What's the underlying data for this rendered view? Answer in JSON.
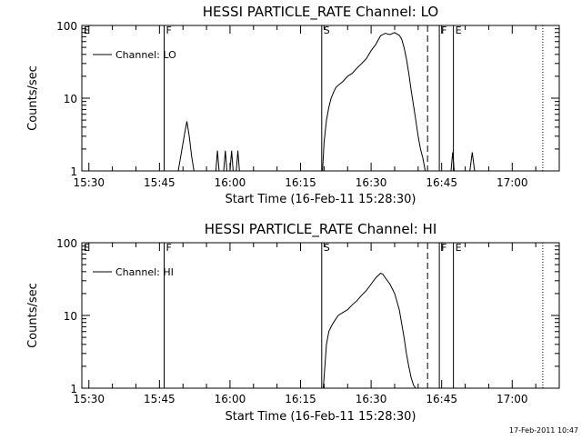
{
  "footer": {
    "timestamp": "17-Feb-2011 10:47"
  },
  "colors": {
    "background": "#ffffff",
    "ink": "#000000"
  },
  "chart_data": [
    {
      "type": "line",
      "title": "HESSI PARTICLE_RATE Channel: LO",
      "xlabel": "Start Time (16-Feb-11 15:28:30)",
      "ylabel": "Counts/sec",
      "y_scale": "log",
      "ylim": [
        1,
        100
      ],
      "xlim": [
        "15:28:30",
        "17:10:00"
      ],
      "x_ticks": [
        "15:30",
        "15:45",
        "16:00",
        "16:15",
        "16:30",
        "16:45",
        "17:00"
      ],
      "y_ticks": [
        "1",
        "10",
        "100"
      ],
      "legend": {
        "position": "top-left",
        "entries": [
          "Channel: LO"
        ]
      },
      "flags": [
        {
          "label": "E",
          "time": "15:28:30",
          "style": "none"
        },
        {
          "label": "F",
          "time": "15:46:00",
          "style": "solid"
        },
        {
          "label": "S",
          "time": "16:19:30",
          "style": "solid"
        },
        {
          "label": "",
          "time": "16:42:00",
          "style": "dashed"
        },
        {
          "label": "F",
          "time": "16:44:30",
          "style": "solid"
        },
        {
          "label": "E",
          "time": "16:47:30",
          "style": "solid"
        },
        {
          "label": "",
          "time": "17:06:30",
          "style": "dotted"
        }
      ],
      "series": [
        {
          "name": "Channel: LO",
          "segments": [
            {
              "x": [
                "15:49:00",
                "15:49:40",
                "15:50:20",
                "15:50:50",
                "15:51:20",
                "15:51:50",
                "15:52:20"
              ],
              "y": [
                1,
                1.8,
                3.2,
                4.8,
                3.0,
                1.6,
                1
              ]
            },
            {
              "x": [
                "15:57:00",
                "15:57:20",
                "15:57:40"
              ],
              "y": [
                1,
                1.9,
                1
              ]
            },
            {
              "x": [
                "15:58:40",
                "15:59:00",
                "15:59:20"
              ],
              "y": [
                1,
                1.9,
                1
              ]
            },
            {
              "x": [
                "16:00:00",
                "16:00:20",
                "16:00:40"
              ],
              "y": [
                1,
                1.9,
                1
              ]
            },
            {
              "x": [
                "16:01:20",
                "16:01:40",
                "16:02:00"
              ],
              "y": [
                1,
                1.9,
                1
              ]
            },
            {
              "x": [
                "16:19:40",
                "16:20:00",
                "16:20:30",
                "16:21:00",
                "16:21:30",
                "16:22:00",
                "16:22:30",
                "16:23:00",
                "16:24:00",
                "16:25:00",
                "16:26:00",
                "16:27:00",
                "16:28:00",
                "16:29:00",
                "16:30:00",
                "16:31:00",
                "16:32:00",
                "16:33:00",
                "16:34:00",
                "16:35:00",
                "16:36:00",
                "16:36:30",
                "16:37:00",
                "16:37:30",
                "16:38:00",
                "16:38:30",
                "16:39:00",
                "16:39:30",
                "16:40:00",
                "16:40:30",
                "16:41:00",
                "16:41:30"
              ],
              "y": [
                1,
                2.5,
                5,
                7.5,
                10,
                12,
                14,
                15,
                17,
                20,
                22,
                26,
                30,
                35,
                45,
                55,
                72,
                78,
                75,
                80,
                73,
                65,
                50,
                35,
                22,
                13,
                8,
                5,
                3,
                2,
                1.5,
                1
              ]
            },
            {
              "x": [
                "16:47:00",
                "16:47:20",
                "16:47:40"
              ],
              "y": [
                1,
                1.8,
                1
              ]
            },
            {
              "x": [
                "16:51:00",
                "16:51:30",
                "16:52:00"
              ],
              "y": [
                1,
                1.8,
                1
              ]
            }
          ]
        }
      ]
    },
    {
      "type": "line",
      "title": "HESSI PARTICLE_RATE Channel: HI",
      "xlabel": "Start Time (16-Feb-11 15:28:30)",
      "ylabel": "Counts/sec",
      "y_scale": "log",
      "ylim": [
        1,
        100
      ],
      "xlim": [
        "15:28:30",
        "17:10:00"
      ],
      "x_ticks": [
        "15:30",
        "15:45",
        "16:00",
        "16:15",
        "16:30",
        "16:45",
        "17:00"
      ],
      "y_ticks": [
        "1",
        "10",
        "100"
      ],
      "legend": {
        "position": "top-left",
        "entries": [
          "Channel: HI"
        ]
      },
      "flags": [
        {
          "label": "E",
          "time": "15:28:30",
          "style": "none"
        },
        {
          "label": "F",
          "time": "15:46:00",
          "style": "solid"
        },
        {
          "label": "S",
          "time": "16:19:30",
          "style": "solid"
        },
        {
          "label": "",
          "time": "16:42:00",
          "style": "dashed"
        },
        {
          "label": "F",
          "time": "16:44:30",
          "style": "solid"
        },
        {
          "label": "E",
          "time": "16:47:30",
          "style": "solid"
        },
        {
          "label": "",
          "time": "17:06:30",
          "style": "dotted"
        }
      ],
      "series": [
        {
          "name": "Channel: HI",
          "segments": [
            {
              "x": [
                "16:19:50",
                "16:20:30",
                "16:21:00",
                "16:21:30",
                "16:22:00",
                "16:23:00",
                "16:24:00",
                "16:25:00",
                "16:26:00",
                "16:27:00",
                "16:28:00",
                "16:29:00",
                "16:30:00",
                "16:31:00",
                "16:32:00",
                "16:32:30",
                "16:33:00",
                "16:34:00",
                "16:35:00",
                "16:36:00",
                "16:37:00",
                "16:37:30",
                "16:38:00",
                "16:38:30",
                "16:39:00",
                "16:39:30"
              ],
              "y": [
                1,
                4,
                6,
                7,
                8,
                10,
                11,
                12,
                14,
                16,
                19,
                22,
                27,
                33,
                38,
                37,
                33,
                27,
                20,
                12,
                5,
                3,
                2,
                1.4,
                1.1,
                1
              ]
            }
          ]
        }
      ]
    }
  ]
}
